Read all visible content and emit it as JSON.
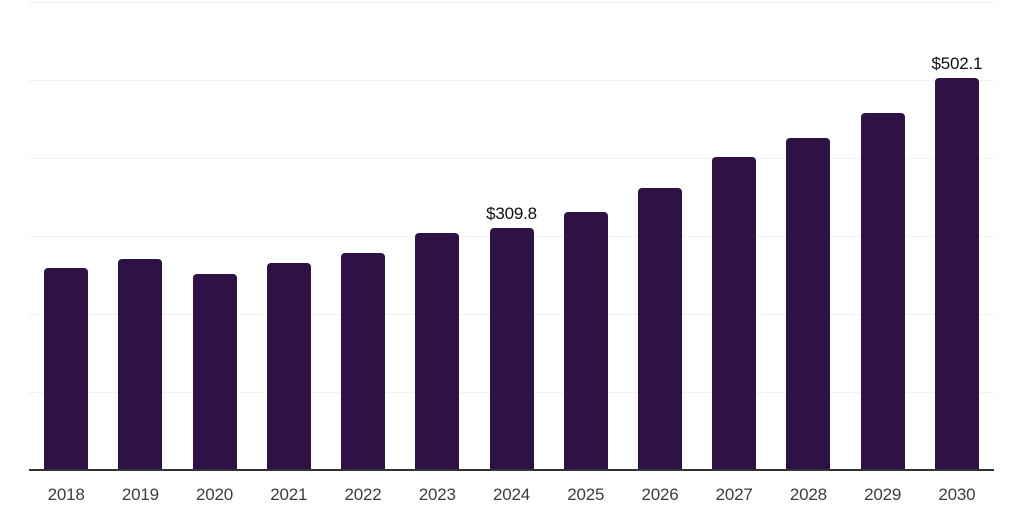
{
  "chart_data": {
    "type": "bar",
    "title": "",
    "xlabel": "",
    "ylabel": "",
    "categories": [
      "2018",
      "2019",
      "2020",
      "2021",
      "2022",
      "2023",
      "2024",
      "2025",
      "2026",
      "2027",
      "2028",
      "2029",
      "2030"
    ],
    "values": [
      259,
      271,
      251,
      265,
      278,
      304,
      309.8,
      331,
      362,
      401,
      426,
      458,
      502.1
    ],
    "data_labels": [
      {
        "category": "2024",
        "text": "$309.8"
      },
      {
        "category": "2030",
        "text": "$502.1"
      }
    ],
    "ylim": [
      0,
      600
    ],
    "grid_interval": 100,
    "grid": true,
    "legend": false,
    "y_axis_tick_labels_visible": false,
    "colors": {
      "bar": "#2f1245",
      "gridline": "#f1f1f3",
      "axis_line": "#333333",
      "tick_label": "#3d3d3d",
      "value_label": "#0f0f0f",
      "background": "#ffffff"
    }
  }
}
